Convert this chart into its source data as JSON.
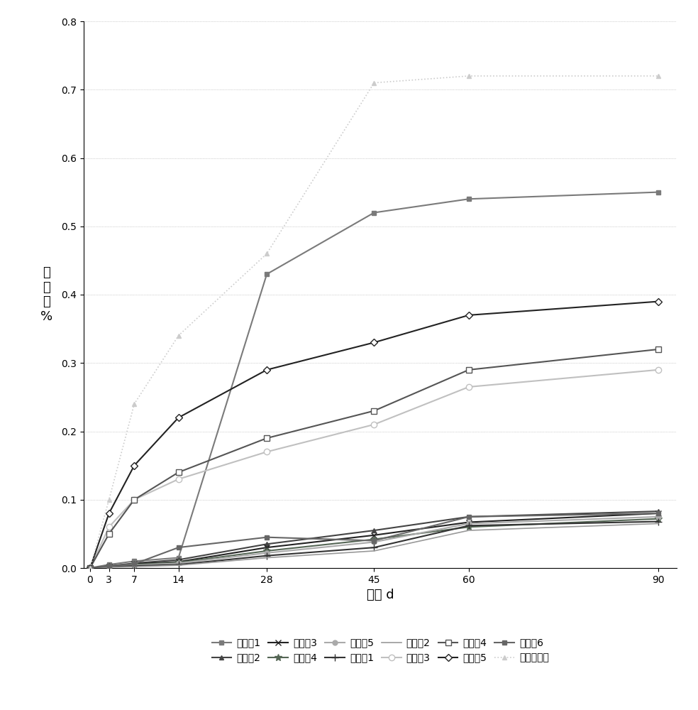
{
  "x": [
    0,
    3,
    7,
    14,
    28,
    45,
    60,
    90
  ],
  "series": [
    {
      "label": "实施例1",
      "values": [
        0,
        0.005,
        0.01,
        0.015,
        0.43,
        0.52,
        0.54,
        0.55
      ],
      "color": "#7a7a7a",
      "marker": "s",
      "linestyle": "-",
      "linewidth": 1.5,
      "markersize": 5,
      "markerfacecolor": "#7a7a7a"
    },
    {
      "label": "实施例2",
      "values": [
        0,
        0.003,
        0.007,
        0.012,
        0.035,
        0.055,
        0.075,
        0.083
      ],
      "color": "#444444",
      "marker": "^",
      "linestyle": "-",
      "linewidth": 1.5,
      "markersize": 5,
      "markerfacecolor": "#444444"
    },
    {
      "label": "实施例3",
      "values": [
        0,
        0.002,
        0.006,
        0.009,
        0.03,
        0.048,
        0.067,
        0.08
      ],
      "color": "#222222",
      "marker": "x",
      "linestyle": "-",
      "linewidth": 1.5,
      "markersize": 6,
      "markerfacecolor": "#222222"
    },
    {
      "label": "实施例4",
      "values": [
        0,
        0.002,
        0.005,
        0.008,
        0.025,
        0.042,
        0.06,
        0.072
      ],
      "color": "#556655",
      "marker": "*",
      "linestyle": "-",
      "linewidth": 1.5,
      "markersize": 7,
      "markerfacecolor": "#556655"
    },
    {
      "label": "实施例5",
      "values": [
        0,
        0.002,
        0.004,
        0.007,
        0.022,
        0.038,
        0.065,
        0.075
      ],
      "color": "#aaaaaa",
      "marker": "o",
      "linestyle": "-",
      "linewidth": 1.5,
      "markersize": 5,
      "markerfacecolor": "#aaaaaa"
    },
    {
      "label": "对比例1",
      "values": [
        0,
        0.002,
        0.003,
        0.005,
        0.018,
        0.03,
        0.062,
        0.068
      ],
      "color": "#333333",
      "marker": "+",
      "linestyle": "-",
      "linewidth": 1.5,
      "markersize": 7,
      "markerfacecolor": "#333333"
    },
    {
      "label": "对比例2",
      "values": [
        0,
        0.001,
        0.002,
        0.004,
        0.015,
        0.025,
        0.055,
        0.065
      ],
      "color": "#999999",
      "marker": null,
      "linestyle": "-",
      "linewidth": 1.2,
      "markersize": 5,
      "markerfacecolor": "#999999"
    },
    {
      "label": "对比例3",
      "values": [
        0,
        0.06,
        0.1,
        0.13,
        0.17,
        0.21,
        0.265,
        0.29
      ],
      "color": "#c0c0c0",
      "marker": "o",
      "linestyle": "-",
      "linewidth": 1.5,
      "markersize": 6,
      "markerfacecolor": "white"
    },
    {
      "label": "对比例4",
      "values": [
        0,
        0.05,
        0.1,
        0.14,
        0.19,
        0.23,
        0.29,
        0.32
      ],
      "color": "#555555",
      "marker": "s",
      "linestyle": "-",
      "linewidth": 1.5,
      "markersize": 6,
      "markerfacecolor": "white"
    },
    {
      "label": "对比例5",
      "values": [
        0,
        0.08,
        0.15,
        0.22,
        0.29,
        0.33,
        0.37,
        0.39
      ],
      "color": "#222222",
      "marker": "D",
      "linestyle": "-",
      "linewidth": 1.5,
      "markersize": 5,
      "markerfacecolor": "white"
    },
    {
      "label": "对比例6",
      "values": [
        0,
        0.003,
        0.006,
        0.03,
        0.045,
        0.04,
        0.075,
        0.08
      ],
      "color": "#666666",
      "marker": "s",
      "linestyle": "-",
      "linewidth": 1.5,
      "markersize": 5,
      "markerfacecolor": "#666666"
    },
    {
      "label": "不含抑制剂",
      "values": [
        0,
        0.1,
        0.24,
        0.34,
        0.46,
        0.71,
        0.72,
        0.72
      ],
      "color": "#cccccc",
      "marker": "^",
      "linestyle": ":",
      "linewidth": 1.2,
      "markersize": 5,
      "markerfacecolor": "#cccccc"
    }
  ],
  "xlabel": "龄期 d",
  "ylabel": "膨\n胀\n率\n%",
  "ylim": [
    0,
    0.8
  ],
  "yticks": [
    0,
    0.1,
    0.2,
    0.3,
    0.4,
    0.5,
    0.6,
    0.7,
    0.8
  ],
  "xticks": [
    0,
    3,
    7,
    14,
    28,
    45,
    60,
    90
  ],
  "axis_fontsize": 13,
  "legend_fontsize": 10,
  "figsize": [
    9.84,
    10.0
  ],
  "dpi": 100,
  "legend_order": [
    0,
    1,
    2,
    3,
    4,
    5,
    6,
    7,
    8,
    9,
    10,
    11
  ]
}
